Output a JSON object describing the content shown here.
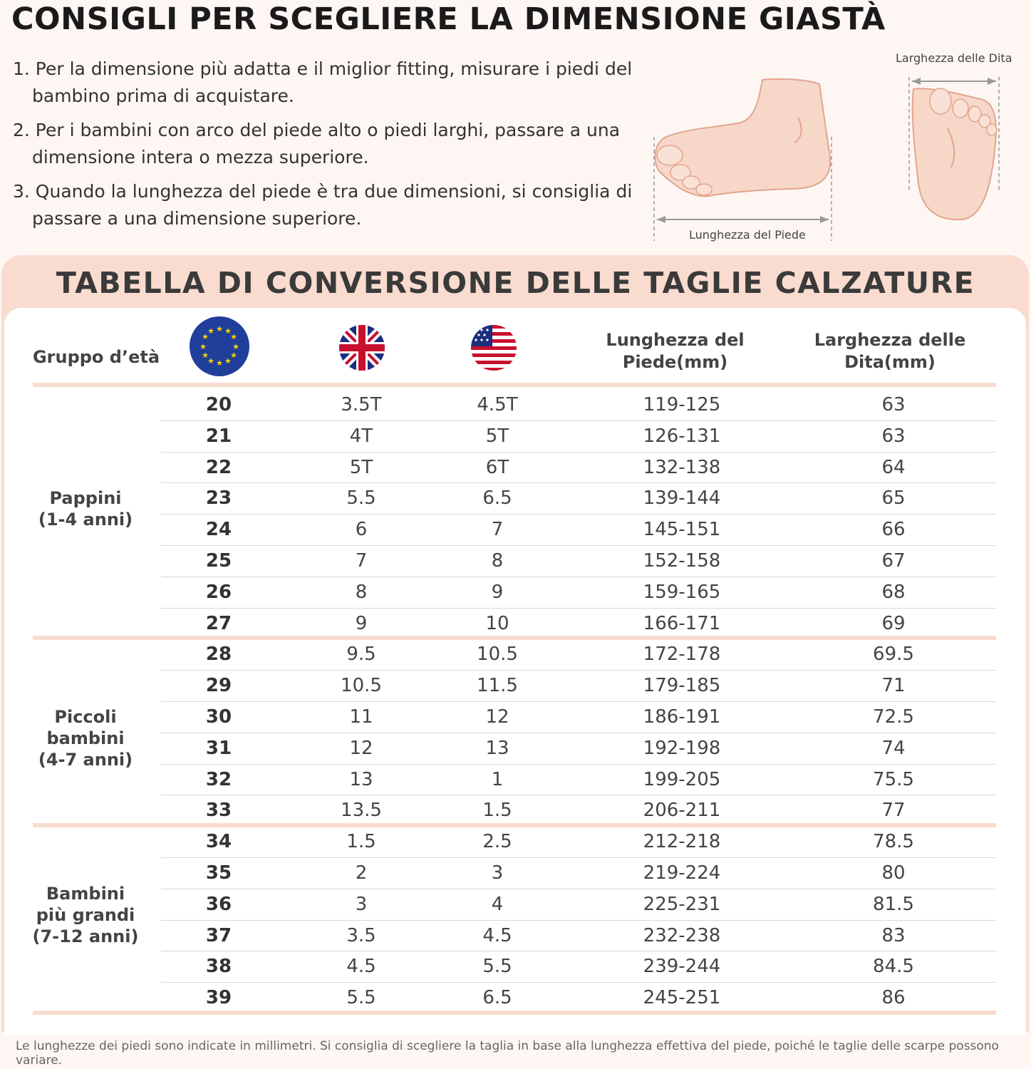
{
  "heading": "CONSIGLI PER SCEGLIERE LA DIMENSIONE GIASTÀ",
  "tips": [
    "1. Per la dimensione più adatta e il miglior fitting, misurare i piedi del bambino prima di acquistare.",
    "2. Per i bambini con arco del piede alto o piedi larghi, passare a una dimensione intera o mezza superiore.",
    "3. Quando la lunghezza del piede è tra due dimensioni, si consiglia di passare a una dimensione superiore."
  ],
  "illustration": {
    "width_label": "Larghezza delle Dita",
    "length_label": "Lunghezza del Piede"
  },
  "table": {
    "title": "TABELLA DI CONVERSIONE DELLE TAGLIE CALZATURE",
    "headers": {
      "age_group": "Gruppo d’età",
      "eu_flag": "eu-flag-icon",
      "uk_flag": "uk-flag-icon",
      "us_flag": "us-flag-icon",
      "length_line1": "Lunghezza del",
      "length_line2": "Piede(mm)",
      "width_line1": "Larghezza delle",
      "width_line2": "Dita(mm)"
    },
    "groups": [
      {
        "name_lines": [
          "Pappini",
          "(1-4 anni)"
        ],
        "rows": [
          [
            "20",
            "3.5T",
            "4.5T",
            "119-125",
            "63"
          ],
          [
            "21",
            "4T",
            "5T",
            "126-131",
            "63"
          ],
          [
            "22",
            "5T",
            "6T",
            "132-138",
            "64"
          ],
          [
            "23",
            "5.5",
            "6.5",
            "139-144",
            "65"
          ],
          [
            "24",
            "6",
            "7",
            "145-151",
            "66"
          ],
          [
            "25",
            "7",
            "8",
            "152-158",
            "67"
          ],
          [
            "26",
            "8",
            "9",
            "159-165",
            "68"
          ],
          [
            "27",
            "9",
            "10",
            "166-171",
            "69"
          ]
        ]
      },
      {
        "name_lines": [
          "Piccoli bambini",
          "(4-7 anni)"
        ],
        "rows": [
          [
            "28",
            "9.5",
            "10.5",
            "172-178",
            "69.5"
          ],
          [
            "29",
            "10.5",
            "11.5",
            "179-185",
            "71"
          ],
          [
            "30",
            "11",
            "12",
            "186-191",
            "72.5"
          ],
          [
            "31",
            "12",
            "13",
            "192-198",
            "74"
          ],
          [
            "32",
            "13",
            "1",
            "199-205",
            "75.5"
          ],
          [
            "33",
            "13.5",
            "1.5",
            "206-211",
            "77"
          ]
        ]
      },
      {
        "name_lines": [
          "Bambini",
          "più grandi",
          "(7-12 anni)"
        ],
        "rows": [
          [
            "34",
            "1.5",
            "2.5",
            "212-218",
            "78.5"
          ],
          [
            "35",
            "2",
            "3",
            "219-224",
            "80"
          ],
          [
            "36",
            "3",
            "4",
            "225-231",
            "81.5"
          ],
          [
            "37",
            "3.5",
            "4.5",
            "232-238",
            "83"
          ],
          [
            "38",
            "4.5",
            "5.5",
            "239-244",
            "84.5"
          ],
          [
            "39",
            "5.5",
            "6.5",
            "245-251",
            "86"
          ]
        ]
      }
    ]
  },
  "footnote": "Le lunghezze dei piedi sono indicate in millimetri. Si consiglia di scegliere la taglia in base alla lunghezza effettiva del piede,  poiché le taglie delle scarpe possono variare.",
  "colors": {
    "accent_peach": "#f9dccf",
    "page_bg": "#fdf6f3",
    "skin": "#f7d7c8",
    "skin_outline": "#e2a58e"
  }
}
